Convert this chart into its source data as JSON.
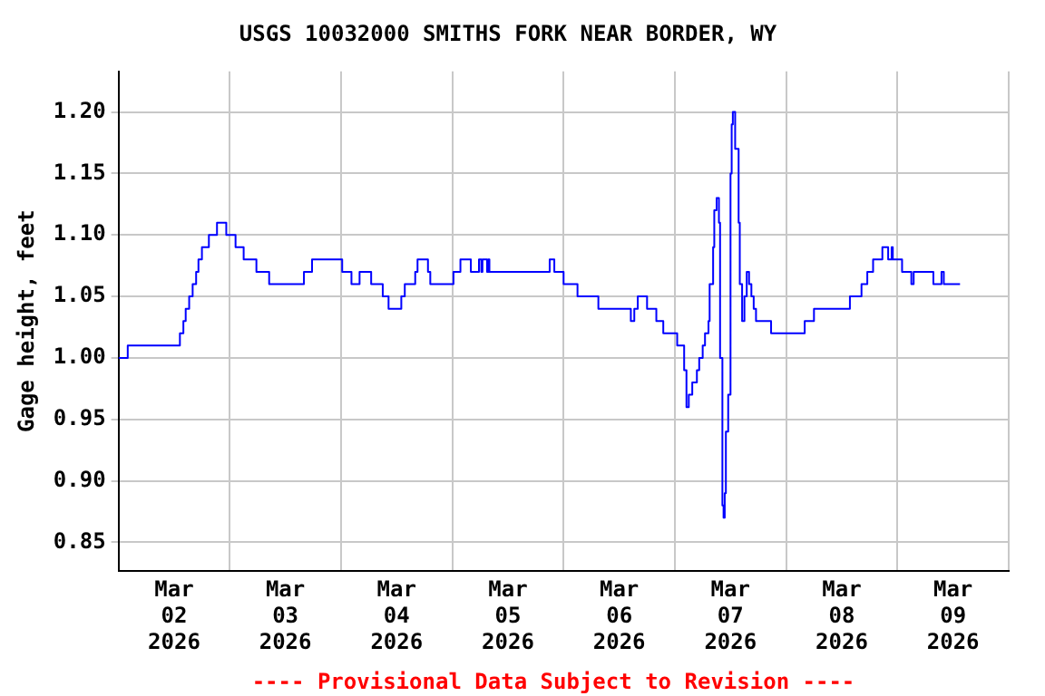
{
  "chart_data": {
    "type": "step",
    "title": "USGS 10032000 SMITHS FORK NEAR BORDER, WY",
    "ylabel": "Gage height, feet",
    "annotations": [
      "---- Provisional Data Subject to Revision ----"
    ],
    "xlim": [
      "2026-03-02T00:00",
      "2026-03-10T00:00"
    ],
    "xticks": [
      {
        "value": "2026-03-02T00:00",
        "label": null
      },
      {
        "value": "2026-03-02T12:00",
        "label": "Mar 02 2026"
      },
      {
        "value": "2026-03-03T00:00",
        "label": null
      },
      {
        "value": "2026-03-03T12:00",
        "label": "Mar 03 2026"
      },
      {
        "value": "2026-03-04T00:00",
        "label": null
      },
      {
        "value": "2026-03-04T12:00",
        "label": "Mar 04 2026"
      },
      {
        "value": "2026-03-05T00:00",
        "label": null
      },
      {
        "value": "2026-03-05T12:00",
        "label": "Mar 05 2026"
      },
      {
        "value": "2026-03-06T00:00",
        "label": null
      },
      {
        "value": "2026-03-06T12:00",
        "label": "Mar 06 2026"
      },
      {
        "value": "2026-03-07T00:00",
        "label": null
      },
      {
        "value": "2026-03-07T12:00",
        "label": "Mar 07 2026"
      },
      {
        "value": "2026-03-08T00:00",
        "label": null
      },
      {
        "value": "2026-03-08T12:00",
        "label": "Mar 08 2026"
      },
      {
        "value": "2026-03-09T00:00",
        "label": null
      },
      {
        "value": "2026-03-09T12:00",
        "label": "Mar 09 2026"
      },
      {
        "value": "2026-03-10T00:00",
        "label": null
      }
    ],
    "ylim": [
      0.827,
      1.233
    ],
    "yticks": [
      {
        "value": 0.85,
        "label": "0.85"
      },
      {
        "value": 0.9,
        "label": "0.90"
      },
      {
        "value": 0.95,
        "label": "0.95"
      },
      {
        "value": 1.0,
        "label": "1.00"
      },
      {
        "value": 1.05,
        "label": "1.05"
      },
      {
        "value": 1.1,
        "label": "1.10"
      },
      {
        "value": 1.15,
        "label": "1.15"
      },
      {
        "value": 1.2,
        "label": "1.20"
      }
    ],
    "grid": true,
    "legend": false,
    "marker": "none",
    "line_style": "solid",
    "series": [
      {
        "color": "#0000ff",
        "x": [
          "2026-03-02T00:00",
          "2026-03-02T02:00",
          "2026-03-02T13:15",
          "2026-03-02T14:00",
          "2026-03-02T14:30",
          "2026-03-02T15:15",
          "2026-03-02T16:00",
          "2026-03-02T16:45",
          "2026-03-02T17:15",
          "2026-03-02T18:00",
          "2026-03-02T19:30",
          "2026-03-02T21:15",
          "2026-03-02T23:15",
          "2026-03-03T01:15",
          "2026-03-03T03:00",
          "2026-03-03T05:45",
          "2026-03-03T08:30",
          "2026-03-03T16:00",
          "2026-03-03T17:45",
          "2026-03-04T00:15",
          "2026-03-04T02:15",
          "2026-03-04T04:00",
          "2026-03-04T06:30",
          "2026-03-04T09:00",
          "2026-03-04T10:15",
          "2026-03-04T13:00",
          "2026-03-04T13:45",
          "2026-03-04T16:00",
          "2026-03-04T16:30",
          "2026-03-04T18:45",
          "2026-03-04T19:15",
          "2026-03-05T00:15",
          "2026-03-05T01:45",
          "2026-03-05T04:00",
          "2026-03-05T05:45",
          "2026-03-05T06:15",
          "2026-03-05T06:30",
          "2026-03-05T07:30",
          "2026-03-05T07:45",
          "2026-03-05T08:00",
          "2026-03-05T21:00",
          "2026-03-05T22:00",
          "2026-03-06T00:00",
          "2026-03-06T03:00",
          "2026-03-06T07:30",
          "2026-03-06T14:30",
          "2026-03-06T15:15",
          "2026-03-06T16:00",
          "2026-03-06T18:00",
          "2026-03-06T20:00",
          "2026-03-06T21:30",
          "2026-03-07T00:30",
          "2026-03-07T02:00",
          "2026-03-07T02:30",
          "2026-03-07T03:00",
          "2026-03-07T03:45",
          "2026-03-07T04:45",
          "2026-03-07T05:15",
          "2026-03-07T06:00",
          "2026-03-07T06:30",
          "2026-03-07T07:15",
          "2026-03-07T07:30",
          "2026-03-07T08:15",
          "2026-03-07T08:30",
          "2026-03-07T09:00",
          "2026-03-07T09:30",
          "2026-03-07T09:45",
          "2026-03-07T10:15",
          "2026-03-07T10:30",
          "2026-03-07T10:45",
          "2026-03-07T11:00",
          "2026-03-07T11:30",
          "2026-03-07T12:00",
          "2026-03-07T12:15",
          "2026-03-07T12:30",
          "2026-03-07T13:00",
          "2026-03-07T13:45",
          "2026-03-07T14:00",
          "2026-03-07T14:30",
          "2026-03-07T15:00",
          "2026-03-07T15:30",
          "2026-03-07T16:00",
          "2026-03-07T16:30",
          "2026-03-07T17:00",
          "2026-03-07T17:30",
          "2026-03-07T20:45",
          "2026-03-08T04:00",
          "2026-03-08T06:00",
          "2026-03-08T13:45",
          "2026-03-08T16:15",
          "2026-03-08T17:30",
          "2026-03-08T18:45",
          "2026-03-08T20:45",
          "2026-03-08T22:00",
          "2026-03-08T22:45",
          "2026-03-08T23:00",
          "2026-03-09T01:00",
          "2026-03-09T03:00",
          "2026-03-09T03:30",
          "2026-03-09T07:45",
          "2026-03-09T09:30",
          "2026-03-09T10:00",
          "2026-03-09T13:30"
        ],
        "values": [
          1.0,
          1.01,
          1.02,
          1.03,
          1.04,
          1.05,
          1.06,
          1.07,
          1.08,
          1.09,
          1.1,
          1.11,
          1.1,
          1.09,
          1.08,
          1.07,
          1.06,
          1.07,
          1.08,
          1.07,
          1.06,
          1.07,
          1.06,
          1.05,
          1.04,
          1.05,
          1.06,
          1.07,
          1.08,
          1.07,
          1.06,
          1.07,
          1.08,
          1.07,
          1.08,
          1.07,
          1.08,
          1.07,
          1.08,
          1.07,
          1.08,
          1.07,
          1.06,
          1.05,
          1.04,
          1.03,
          1.04,
          1.05,
          1.04,
          1.03,
          1.02,
          1.01,
          0.99,
          0.96,
          0.97,
          0.98,
          0.99,
          1.0,
          1.01,
          1.02,
          1.03,
          1.06,
          1.09,
          1.12,
          1.13,
          1.11,
          1.0,
          0.88,
          0.87,
          0.89,
          0.94,
          0.97,
          1.15,
          1.19,
          1.2,
          1.17,
          1.11,
          1.06,
          1.03,
          1.05,
          1.07,
          1.06,
          1.05,
          1.04,
          1.03,
          1.02,
          1.03,
          1.04,
          1.05,
          1.06,
          1.07,
          1.08,
          1.09,
          1.08,
          1.09,
          1.08,
          1.07,
          1.06,
          1.07,
          1.06,
          1.07,
          1.06,
          1.06
        ]
      }
    ]
  }
}
